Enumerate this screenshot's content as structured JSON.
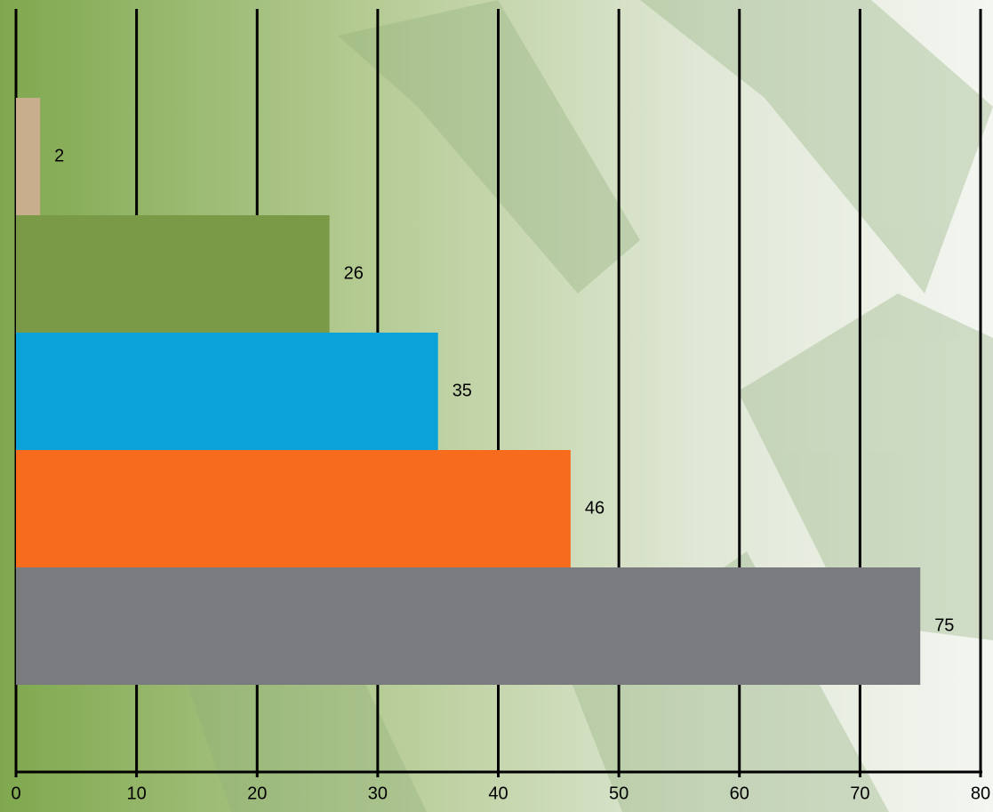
{
  "chart_data": {
    "type": "barh",
    "categories": [
      null,
      null,
      null,
      null,
      null
    ],
    "values": [
      2,
      26,
      35,
      46,
      75
    ],
    "colors": [
      "#c8ae8c",
      "#7b9a48",
      "#0aa2d8",
      "#f76b1c",
      "#7a7b7f"
    ],
    "xlim": [
      0,
      80
    ],
    "xticks": [
      0,
      10,
      20,
      30,
      40,
      50,
      60,
      70,
      80
    ],
    "grid": true
  }
}
